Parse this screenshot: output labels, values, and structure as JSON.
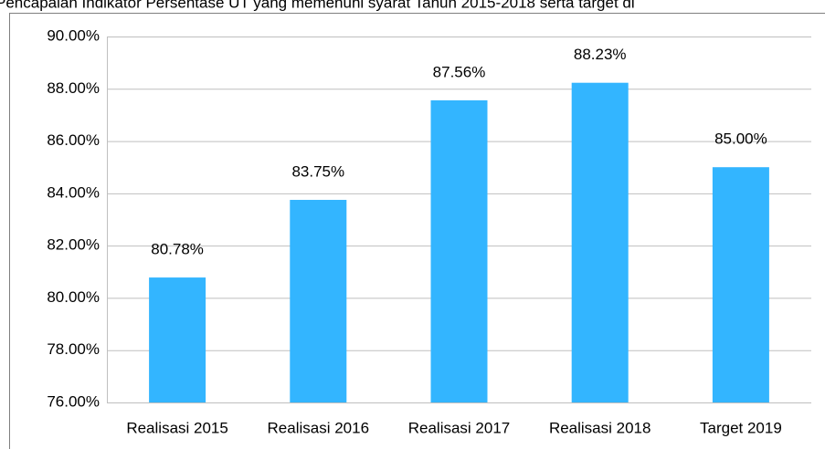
{
  "chart_data": {
    "type": "bar",
    "title": "Pencapaian Indikator Persentase UT yang memenuhi syarat Tahun 2015-2018 serta target di",
    "categories": [
      "Realisasi 2015",
      "Realisasi 2016",
      "Realisasi 2017",
      "Realisasi 2018",
      "Target 2019"
    ],
    "values": [
      80.78,
      83.75,
      87.56,
      88.23,
      85.0
    ],
    "value_labels": [
      "80.78%",
      "83.75%",
      "87.56%",
      "88.23%",
      "85.00%"
    ],
    "color": "#33b5ff",
    "ylim": [
      76,
      90
    ],
    "yticks": [
      {
        "value": 76,
        "label": "76.00%"
      },
      {
        "value": 78,
        "label": "78.00%"
      },
      {
        "value": 80,
        "label": "80.00%"
      },
      {
        "value": 82,
        "label": "82.00%"
      },
      {
        "value": 84,
        "label": "84.00%"
      },
      {
        "value": 86,
        "label": "86.00%"
      },
      {
        "value": 88,
        "label": "88.00%"
      },
      {
        "value": 90,
        "label": "90.00%"
      }
    ],
    "grid": true
  }
}
